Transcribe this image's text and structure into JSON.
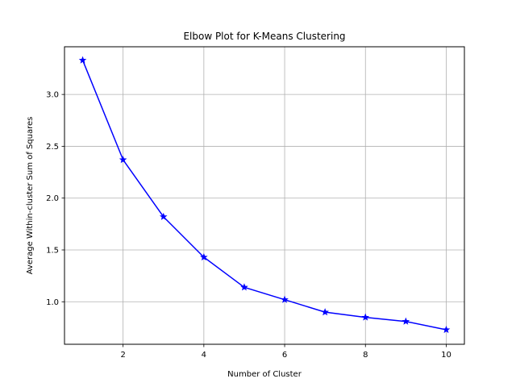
{
  "chart_data": {
    "type": "line",
    "title": "Elbow Plot for K-Means Clustering",
    "xlabel": "Number of Cluster",
    "ylabel": "Average Within-cluster Sum of Squares",
    "x": [
      1,
      2,
      3,
      4,
      5,
      6,
      7,
      8,
      9,
      10
    ],
    "series": [
      {
        "values": [
          3.33,
          2.37,
          1.82,
          1.43,
          1.14,
          1.02,
          0.9,
          0.85,
          0.81,
          0.73
        ],
        "color": "#0000ff",
        "marker": "star"
      }
    ],
    "xlim": [
      0.55,
      10.45
    ],
    "ylim": [
      0.59,
      3.46
    ],
    "xticks": [
      2,
      4,
      6,
      8,
      10
    ],
    "xtick_labels": [
      "2",
      "4",
      "6",
      "8",
      "10"
    ],
    "yticks": [
      1.0,
      1.5,
      2.0,
      2.5,
      3.0
    ],
    "ytick_labels": [
      "1.0",
      "1.5",
      "2.0",
      "2.5",
      "3.0"
    ],
    "grid": true
  }
}
